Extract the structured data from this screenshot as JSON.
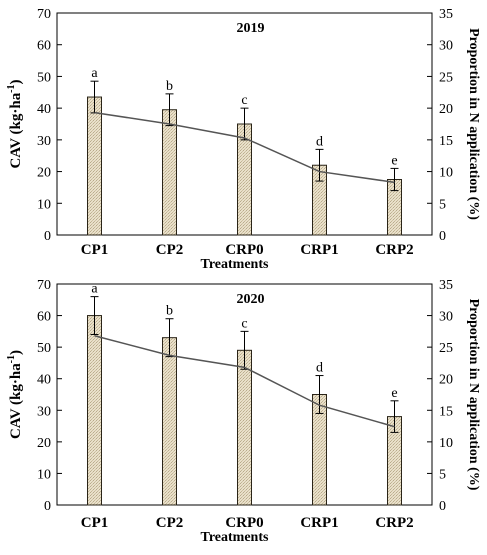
{
  "chart_data": [
    {
      "type": "bar",
      "title": "2019",
      "categories": [
        "CP1",
        "CP2",
        "CRP0",
        "CRP1",
        "CRP2"
      ],
      "xlabel": "Treatments",
      "ylabel": "CAV (kg·ha",
      "ylabel_sup": "-1",
      "ylabel_close": ")",
      "y2label": "Proportion in N application (%)",
      "ylim": [
        0,
        70
      ],
      "y2lim": [
        0,
        35
      ],
      "yticks": [
        0,
        10,
        20,
        30,
        40,
        50,
        60,
        70
      ],
      "y2ticks": [
        0,
        5,
        10,
        15,
        20,
        25,
        30,
        35
      ],
      "series": [
        {
          "values": [
            43.5,
            39.5,
            35,
            22,
            17.5
          ],
          "errors": [
            5,
            5,
            5,
            5,
            3.5
          ],
          "axis": "left"
        },
        {
          "values": [
            19.3,
            17.5,
            15.3,
            10,
            8.3
          ],
          "errors": [],
          "axis": "right"
        }
      ],
      "letters": [
        "a",
        "b",
        "c",
        "d",
        "e"
      ],
      "bar_color": "#e6dcc4",
      "line_color": "#555555"
    },
    {
      "type": "bar",
      "title": "2020",
      "categories": [
        "CP1",
        "CP2",
        "CRP0",
        "CRP1",
        "CRP2"
      ],
      "xlabel": "Treatments",
      "ylabel": "CAV (kg·ha",
      "ylabel_sup": "-1",
      "ylabel_close": ")",
      "y2label": "Proportion in N application (%)",
      "ylim": [
        0,
        70
      ],
      "y2lim": [
        0,
        35
      ],
      "yticks": [
        0,
        10,
        20,
        30,
        40,
        50,
        60,
        70
      ],
      "y2ticks": [
        0,
        5,
        10,
        15,
        20,
        25,
        30,
        35
      ],
      "series": [
        {
          "values": [
            60,
            53,
            49,
            35,
            28
          ],
          "errors": [
            6,
            6,
            6,
            6,
            5
          ],
          "axis": "left"
        },
        {
          "values": [
            26.8,
            23.7,
            21.8,
            15.8,
            12.4
          ],
          "errors": [],
          "axis": "right"
        }
      ],
      "letters": [
        "a",
        "b",
        "c",
        "d",
        "e"
      ],
      "bar_color": "#e6dcc4",
      "line_color": "#555555"
    }
  ]
}
